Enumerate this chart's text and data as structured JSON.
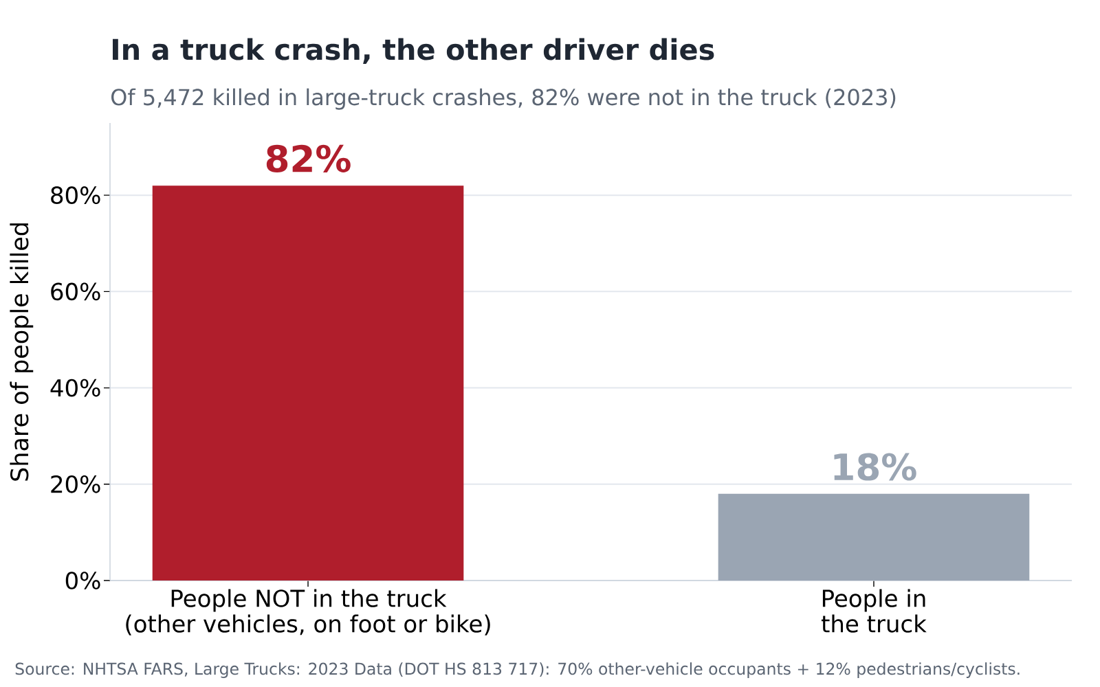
{
  "chart_data": {
    "type": "bar",
    "title": "In a truck crash, the other driver dies",
    "subtitle": "Of 5,472 killed in large-truck crashes, 82% were not in the truck (2023)",
    "ylabel": "Share of people killed",
    "categories": [
      "People NOT in the truck\n(other vehicles, on foot or bike)",
      "People in\nthe truck"
    ],
    "values": [
      82,
      18
    ],
    "colors": [
      "#b01e2c",
      "#9aa5b3"
    ],
    "value_labels": [
      "82%",
      "18%"
    ],
    "ylim": [
      0,
      95
    ],
    "yticks": [
      {
        "value": 0,
        "label": "0%"
      },
      {
        "value": 20,
        "label": "20%"
      },
      {
        "value": 40,
        "label": "40%"
      },
      {
        "value": 60,
        "label": "60%"
      },
      {
        "value": 80,
        "label": "80%"
      }
    ],
    "grid": "y",
    "annotations": [
      "Source: NHTSA FARS, Large Trucks: 2023 Data (DOT HS 813 717): 70% other-vehicle occupants + 12% pedestrians/cyclists."
    ]
  }
}
